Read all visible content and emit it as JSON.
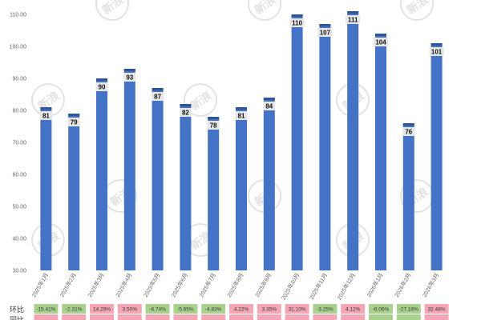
{
  "chart_data": {
    "type": "bar",
    "title": "",
    "xlabel": "",
    "ylabel": "",
    "ylim": [
      30,
      110
    ],
    "ytick_step": 10,
    "yticks": [
      "30.00",
      "40.00",
      "50.00",
      "60.00",
      "70.00",
      "80.00",
      "90.00",
      "100.00",
      "110.00"
    ],
    "categories": [
      "2025年1月",
      "2025年2月",
      "2025年3月",
      "2025年4月",
      "2025年5月",
      "2025年6月",
      "2025年7月",
      "2025年8月",
      "2025年9月",
      "2025年10月",
      "2025年11月",
      "2025年12月",
      "2026年1月",
      "2026年2月",
      "2026年3月"
    ],
    "values": [
      81,
      79,
      90,
      93,
      87,
      82,
      78,
      81,
      84,
      110,
      107,
      111,
      104,
      76,
      101
    ],
    "grid": false,
    "bar_color": "#4472c4",
    "bar_cap_color": "#2f5597",
    "label_box_color": "#e6e6e6",
    "rows": [
      {
        "label": "环比",
        "values": [
          "-15.41%",
          "-2.31%",
          "14.29%",
          "3.50%",
          "-6.74%",
          "-5.65%",
          "-4.83%",
          "4.22%",
          "3.35%",
          "31.10%",
          "-3.25%",
          "4.12%",
          "-6.06%",
          "-27.16%",
          "32.48%"
        ]
      },
      {
        "label": "同比",
        "values": [
          "",
          "",
          "",
          "",
          "",
          "",
          "",
          "",
          "",
          "",
          "",
          "",
          "",
          "",
          ""
        ]
      }
    ],
    "positive_color": "#f4a6b4",
    "negative_color": "#a9d18e"
  },
  "watermark": "新浪"
}
